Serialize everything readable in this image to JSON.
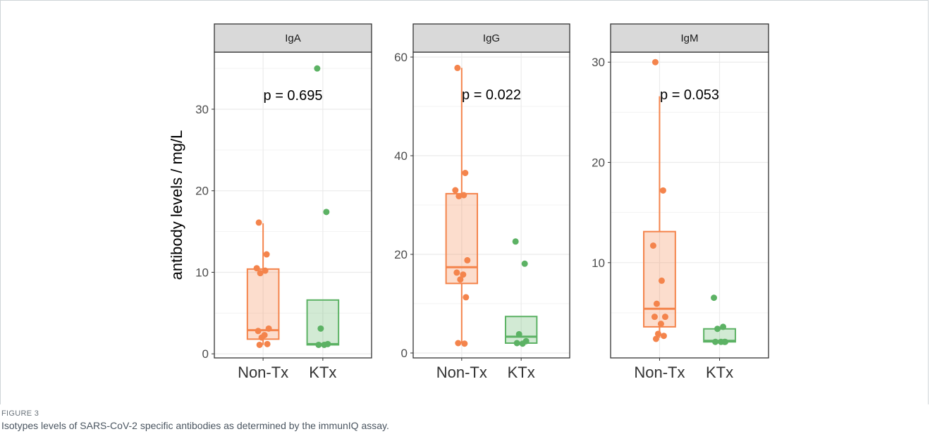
{
  "figure": {
    "label": "FIGURE 3",
    "caption": "Isotypes levels of SARS-CoV-2 specific antibodies as determined by the immunIQ assay."
  },
  "colors": {
    "Non-Tx": "#f4844c",
    "KTx": "#5cb264",
    "strip_bg": "#d9d9d9",
    "grid": "#ebebeb"
  },
  "chart_data": {
    "type": "box",
    "ylabel": "antibody levels / mg/L",
    "categories": [
      "Non-Tx",
      "KTx"
    ],
    "panels": [
      {
        "title": "IgA",
        "ylim": [
          -0.5,
          37
        ],
        "yticks": [
          0,
          10,
          20,
          30
        ],
        "pvalue": "p = 0.695",
        "boxes": {
          "Non-Tx": {
            "min": 1.1,
            "q1": 1.8,
            "median": 2.9,
            "q3": 10.4,
            "max": 16.0
          },
          "KTx": {
            "min": 1.1,
            "q1": 1.1,
            "median": 1.2,
            "q3": 6.6,
            "max": 6.6
          }
        },
        "points": {
          "Non-Tx": [
            16.1,
            12.2,
            10.5,
            10.2,
            9.9,
            3.1,
            2.8,
            2.3,
            2.0,
            1.2,
            1.1
          ],
          "KTx": [
            35.0,
            17.4,
            3.1,
            1.2,
            1.1,
            1.1
          ]
        }
      },
      {
        "title": "IgG",
        "ylim": [
          -1,
          61
        ],
        "yticks": [
          0,
          20,
          40,
          60
        ],
        "pvalue": "p = 0.022",
        "boxes": {
          "Non-Tx": {
            "min": 2.0,
            "q1": 14.1,
            "median": 17.4,
            "q3": 32.3,
            "max": 57.8
          },
          "KTx": {
            "min": 2.0,
            "q1": 2.0,
            "median": 3.3,
            "q3": 7.4,
            "max": 7.4
          }
        },
        "points": {
          "Non-Tx": [
            57.8,
            36.5,
            33.0,
            32.0,
            31.8,
            18.8,
            16.3,
            15.9,
            14.9,
            11.3,
            2.0,
            1.9
          ],
          "KTx": [
            22.6,
            18.1,
            3.8,
            2.4,
            2.0,
            1.9
          ]
        }
      },
      {
        "title": "IgM",
        "ylim": [
          0.5,
          31
        ],
        "yticks": [
          10,
          20,
          30
        ],
        "pvalue": "p = 0.053",
        "boxes": {
          "Non-Tx": {
            "min": 2.5,
            "q1": 3.6,
            "median": 5.4,
            "q3": 13.1,
            "max": 26.6
          },
          "KTx": {
            "min": 2.1,
            "q1": 2.1,
            "median": 2.2,
            "q3": 3.4,
            "max": 3.4
          }
        },
        "points": {
          "Non-Tx": [
            30.0,
            17.2,
            11.7,
            8.2,
            5.9,
            4.6,
            4.6,
            3.9,
            2.9,
            2.7,
            2.4
          ],
          "KTx": [
            6.5,
            3.6,
            3.4,
            2.1,
            2.1,
            2.1,
            2.1
          ]
        }
      }
    ]
  }
}
